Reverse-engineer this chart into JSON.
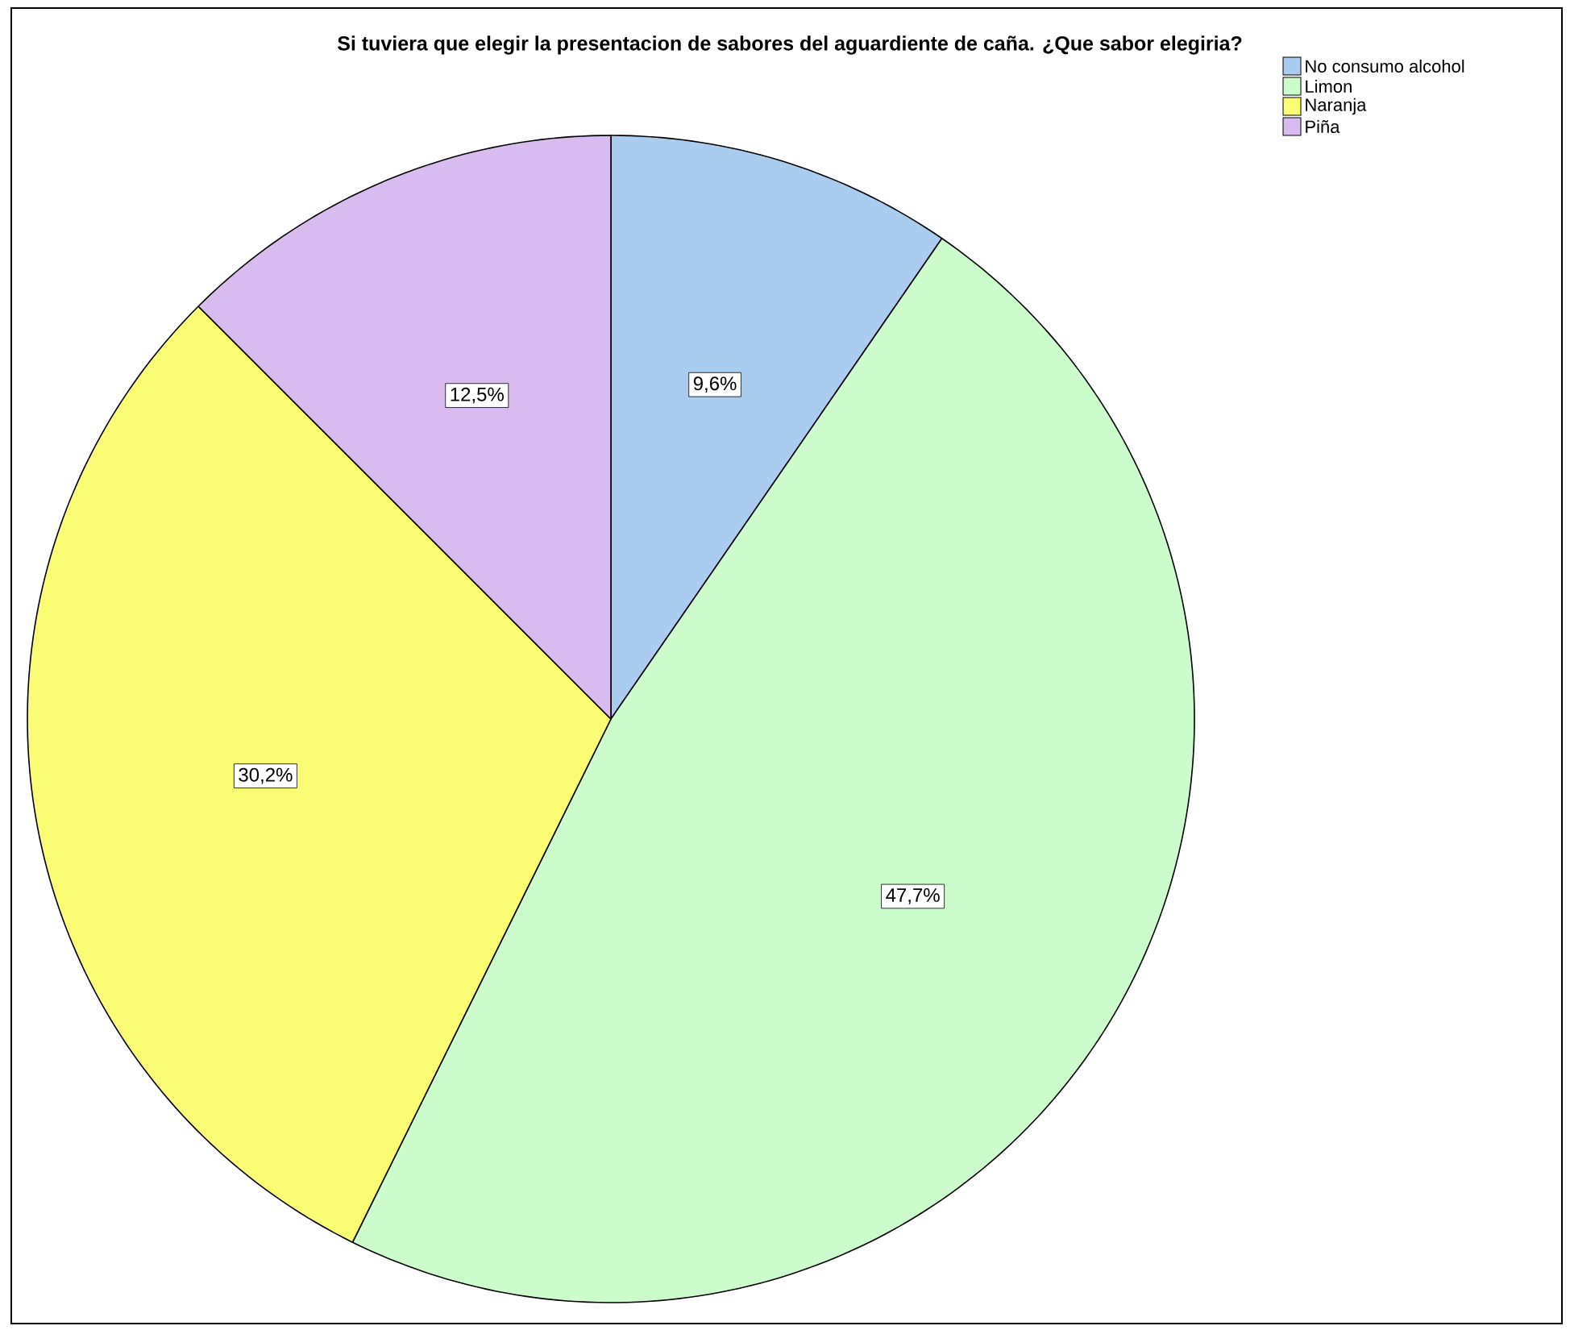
{
  "chart_data": {
    "type": "pie",
    "title": "Si tuviera que elegir la presentacion de sabores del aguardiente de caña. ¿Que sabor elegiria?",
    "categories": [
      "No consumo alcohol",
      "Limon",
      "Naranja",
      "Piña"
    ],
    "values": [
      9.6,
      47.7,
      30.2,
      12.5
    ],
    "colors": [
      "#aacdef",
      "#ccfccc",
      "#fcfc74",
      "#d9bbf0"
    ],
    "value_labels": [
      "9,6%",
      "47,7%",
      "30,2%",
      "12,5%"
    ],
    "legend": "top right"
  }
}
